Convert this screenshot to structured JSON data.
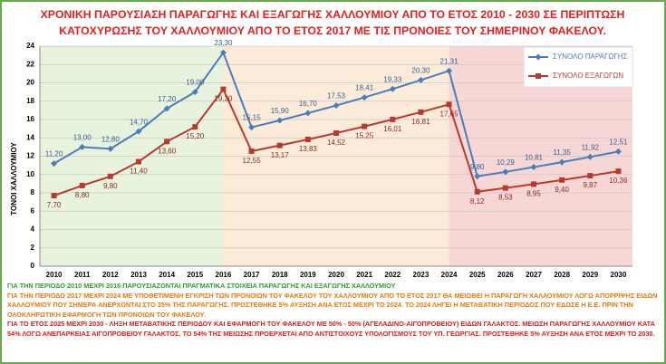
{
  "chart_data": {
    "type": "line",
    "title": "ΧΡΟΝΙΚΗ ΠΑΡΟΥΣΙΑΣΗ ΠΑΡΑΓΩΓΗΣ ΚΑΙ ΕΞΑΓΩΓΗΣ ΧΑΛΛΟΥΜΙΟΥ ΑΠΟ ΤΟ ΕΤΟΣ 2010 - 2030 ΣΕ ΠΕΡΙΠΤΩΣΗ ΚΑΤΟΧΥΡΩΣΗΣ ΤΟΥ ΧΑΛΛΟΥΜΙΟΥ ΑΠΟ ΤΟ ΕΤΟΣ 2017 ΜΕ ΤΙΣ ΠΡΟΝΟΙΕΣ ΤΟΥ ΣΗΜΕΡΙΝΟΥ ΦΑΚΕΛΟΥ.",
    "y_label": "ΤΟΝΟΙ ΧΑΛΛΟΥΜΙΟΥ",
    "categories": [
      "2010",
      "2011",
      "2012",
      "2013",
      "2014",
      "2015",
      "2016",
      "2017",
      "2018",
      "2019",
      "2020",
      "2021",
      "2022",
      "2023",
      "2024",
      "2025",
      "2026",
      "2027",
      "2028",
      "2029",
      "2030"
    ],
    "series": [
      {
        "name": "ΣΥΝΟΛΟ ΠΑΡΑΓΩΓΗΣ",
        "color": "#4a7ebb",
        "values": [
          11.2,
          13.0,
          12.8,
          14.7,
          17.2,
          19.0,
          23.3,
          15.15,
          15.9,
          16.7,
          17.53,
          18.41,
          19.33,
          20.3,
          21.31,
          9.8,
          10.29,
          10.81,
          11.35,
          11.92,
          12.51
        ],
        "value_labels": [
          "11,20",
          "13,00",
          "12,80",
          "14,70",
          "17,20",
          "19,00",
          "23,30",
          "15,15",
          "15,90",
          "16,70",
          "17,53",
          "18,41",
          "19,33",
          "20,30",
          "21,31",
          "9,80",
          "10,29",
          "10,81",
          "11,35",
          "11,92",
          "12,51"
        ]
      },
      {
        "name": "ΣΥΝΟΛΟ ΕΞΑΓΩΓΩΝ",
        "color": "#b83a2e",
        "values": [
          7.7,
          8.8,
          9.8,
          11.4,
          13.6,
          15.2,
          19.3,
          12.55,
          13.17,
          13.83,
          14.52,
          15.25,
          16.01,
          16.81,
          17.65,
          8.12,
          8.53,
          8.95,
          9.4,
          9.87,
          10.36
        ],
        "value_labels": [
          "7,70",
          "8,80",
          "9,80",
          "11,40",
          "13,60",
          "15,20",
          "19,30",
          "12,55",
          "13,17",
          "13,83",
          "14,52",
          "15,25",
          "16,01",
          "16,81",
          "17,65",
          "8,12",
          "8,53",
          "8,95",
          "9,40",
          "9,87",
          "10,36"
        ]
      }
    ],
    "ylim": [
      0,
      24
    ],
    "yticks": [
      0,
      2,
      4,
      6,
      8,
      10,
      12,
      14,
      16,
      18,
      20,
      22,
      24
    ],
    "grid": true,
    "legend": "top-right",
    "annotations": [
      "ΓΙΑ ΤΗΝ ΠΕΡΙΟΔΟ 2010 ΜΕΧΡΙ 2016 ΠΑΡΟΥΣΙΑΖΟΝΤΑΙ ΠΡΑΓΜΑΤΙΚΑ ΣΤΟΙΧΕΙΑ ΠΑΡΑΓΩΓΗΣ ΚΑΙ ΕΞΑΓΩΓΗΣ ΧΑΛΛΟΥΜΙΟΥ",
      "ΓΙΑ ΤΗΝ ΠΕΡΙΟΔΟ 2017 ΜΕΧΡΙ 2024 ΜΕ ΥΠΟΘΕΤΙΜΕΝΗ ΕΓΚΡΙΣΗ ΤΩΝ ΠΡΟΝΟΙΩΝ ΤΟΥ ΦΑΚΕΛΟΥ ΤΟΥ ΧΑΛΛΟΥΜΙΟΥ ΑΠΟ ΤΟ ΕΤΟΣ 2017 ΘΑ ΜΕΙΩΘΕΙ Η ΠΑΡΑΓΩΓΗ ΧΑΛΛΟΥΜΙΟΥ ΛΟΓΩ ΑΠΟΡΡΙΨΗΣ ΕΙΔΩΝ ΧΑΛΛΟΥΜΙΟΥ ΠΟΥ ΣΗΜΕΡΑ ΑΝΕΡΧΟΝΤΑΙ ΣΤΟ 35% ΤΗΣ ΠΑΡΑΓΩΓΗΣ. ΠΡΟΣΤΕΘΗΚΕ 5% ΑΥΞΗΣΗ ΑΝΑ ΕΤΟΣ ΜΕΧΡΙ ΤΟ 2024. ΤΟ 2024 ΛΗΓΕΙ Η ΜΕΤΑΒΑΤΙΚΗ ΠΕΡΙΟΔΟΣ ΠΟΥ ΕΔΩΣΕ Η Ε.Ε. ΠΡΙΝ ΤΗΝ ΟΛΟΚΛΗΡΩΤΙΚΗ ΕΦΑΡΜΟΓΗ ΤΩΝ ΠΡΟΝΟΙΩΝ ΤΟΥ ΦΑΚΕΛΟΥ.",
      "ΓΙΑ ΤΟ ΕΤΟΣ 2025 ΜΕΧΡΙ 2030 - ΛΗΞΗ ΜΕΤΑΒΑΤΙΚΗΣ ΠΕΡΙΟΔΟΥ ΚΑΙ ΕΦΑΡΜΟΓΗ ΤΟΥ ΦΑΚΕΛΟΥ ΜΕ 50% - 50% (ΑΓΕΛΑΔΙΝΟ-ΑΙΓΟΠΡΟΒΕΙΟΥ) ΕΙΔΩΝ ΓΑΛΑΚΤΟΣ. ΜΕΙΩΣΗ ΠΑΡΑΓΩΓΗΣ ΧΑΛΛΟΥΜΙΟΥ ΚΑΤΑ 54% ΛΟΓΩ ΑΝΕΠΑΡΚΕΙΑΣ ΑΙΓΟΠΡΟΒΕΙΟΥ ΓΑΛΑΚΤΟΣ. ΤΟ 54% ΤΗΣ ΜΕΙΩΣΗΣ ΠΡΟΕΡΧΕΤΑΙ ΑΠΟ ΑΝΤΙΣΤΟΙΧΟΥΣ ΥΠΟΛΟΓΙΣΜΟΥΣ ΤΟΥ ΥΠ. ΓΕΩΡΓΙΑΣ. ΠΡΟΣΤΕΘΗΚΕ 5% ΑΥΞΗΣΗ ΑΝΑ ΕΤΟΣ ΜΕΧΡΙ ΤΟ 2030."
    ]
  }
}
